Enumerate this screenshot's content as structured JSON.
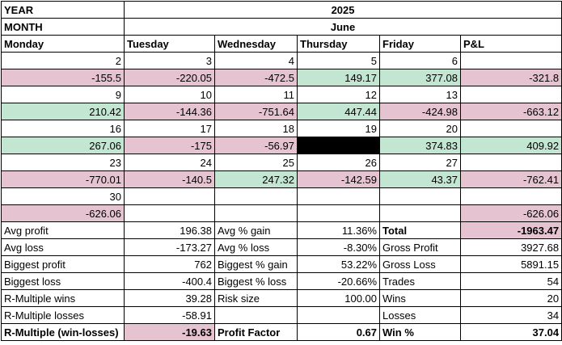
{
  "header": {
    "year_label": "YEAR",
    "year_value": "2025",
    "month_label": "MONTH",
    "month_value": "June",
    "days": [
      "Monday",
      "Tuesday",
      "Wednesday",
      "Thursday",
      "Friday"
    ],
    "pl_label": "P&L"
  },
  "colors": {
    "loss": "#e6c3d1",
    "gain": "#c2e6d2",
    "blocked": "#000000",
    "border": "#000000"
  },
  "weeks": [
    {
      "dates": [
        "2",
        "3",
        "4",
        "5",
        "6"
      ],
      "values": [
        {
          "v": "-155.5",
          "t": "neg"
        },
        {
          "v": "-220.05",
          "t": "neg"
        },
        {
          "v": "-472.5",
          "t": "neg"
        },
        {
          "v": "149.17",
          "t": "pos"
        },
        {
          "v": "377.08",
          "t": "pos"
        },
        {
          "v": "-321.8",
          "t": "neg"
        }
      ]
    },
    {
      "dates": [
        "9",
        "10",
        "11",
        "12",
        "13"
      ],
      "values": [
        {
          "v": "210.42",
          "t": "pos"
        },
        {
          "v": "-144.36",
          "t": "neg"
        },
        {
          "v": "-751.64",
          "t": "neg"
        },
        {
          "v": "447.44",
          "t": "pos"
        },
        {
          "v": "-424.98",
          "t": "neg"
        },
        {
          "v": "-663.12",
          "t": "neg"
        }
      ]
    },
    {
      "dates": [
        "16",
        "17",
        "18",
        "19",
        "20"
      ],
      "values": [
        {
          "v": "267.06",
          "t": "pos"
        },
        {
          "v": "-175",
          "t": "neg"
        },
        {
          "v": "-56.97",
          "t": "neg"
        },
        {
          "v": "",
          "t": "blk"
        },
        {
          "v": "374.83",
          "t": "pos"
        },
        {
          "v": "409.92",
          "t": "pos"
        }
      ]
    },
    {
      "dates": [
        "23",
        "24",
        "25",
        "26",
        "27"
      ],
      "values": [
        {
          "v": "-770.01",
          "t": "neg"
        },
        {
          "v": "-140.5",
          "t": "neg"
        },
        {
          "v": "247.32",
          "t": "pos"
        },
        {
          "v": "-142.59",
          "t": "neg"
        },
        {
          "v": "43.37",
          "t": "pos"
        },
        {
          "v": "-762.41",
          "t": "neg"
        }
      ]
    },
    {
      "dates": [
        "30",
        "",
        "",
        "",
        ""
      ],
      "values": [
        {
          "v": "-626.06",
          "t": "neg"
        },
        {
          "v": "",
          "t": ""
        },
        {
          "v": "",
          "t": ""
        },
        {
          "v": "",
          "t": ""
        },
        {
          "v": "",
          "t": ""
        },
        {
          "v": "-626.06",
          "t": "neg"
        }
      ]
    }
  ],
  "stats": [
    {
      "l1": "Avg profit",
      "v1": "196.38",
      "l2": "Avg % gain",
      "v2": "11.36%",
      "l3": "Total",
      "v3": "-1963.47"
    },
    {
      "l1": "Avg loss",
      "v1": "-173.27",
      "l2": "Avg % loss",
      "v2": "-8.30%",
      "l3": "Gross Profit",
      "v3": "3927.68"
    },
    {
      "l1": "Biggest profit",
      "v1": "762",
      "l2": "Biggest % gain",
      "v2": "53.22%",
      "l3": "Gross Loss",
      "v3": "5891.15"
    },
    {
      "l1": "Biggest loss",
      "v1": "-400.4",
      "l2": "Biggest % loss",
      "v2": "-20.66%",
      "l3": "Trades",
      "v3": "54"
    },
    {
      "l1": "R-Multiple wins",
      "v1": "39.28",
      "l2": "Risk size",
      "v2": "100.00",
      "l3": "Wins",
      "v3": "20"
    },
    {
      "l1": "R-Multiple losses",
      "v1": "-58.91",
      "l2": "",
      "v2": "",
      "l3": "Losses",
      "v3": "34"
    },
    {
      "l1": "R-Multiple (win-losses)",
      "v1": "-19.63",
      "l2": "Profit Factor",
      "v2": "0.67",
      "l3": "Win %",
      "v3": "37.04"
    }
  ]
}
